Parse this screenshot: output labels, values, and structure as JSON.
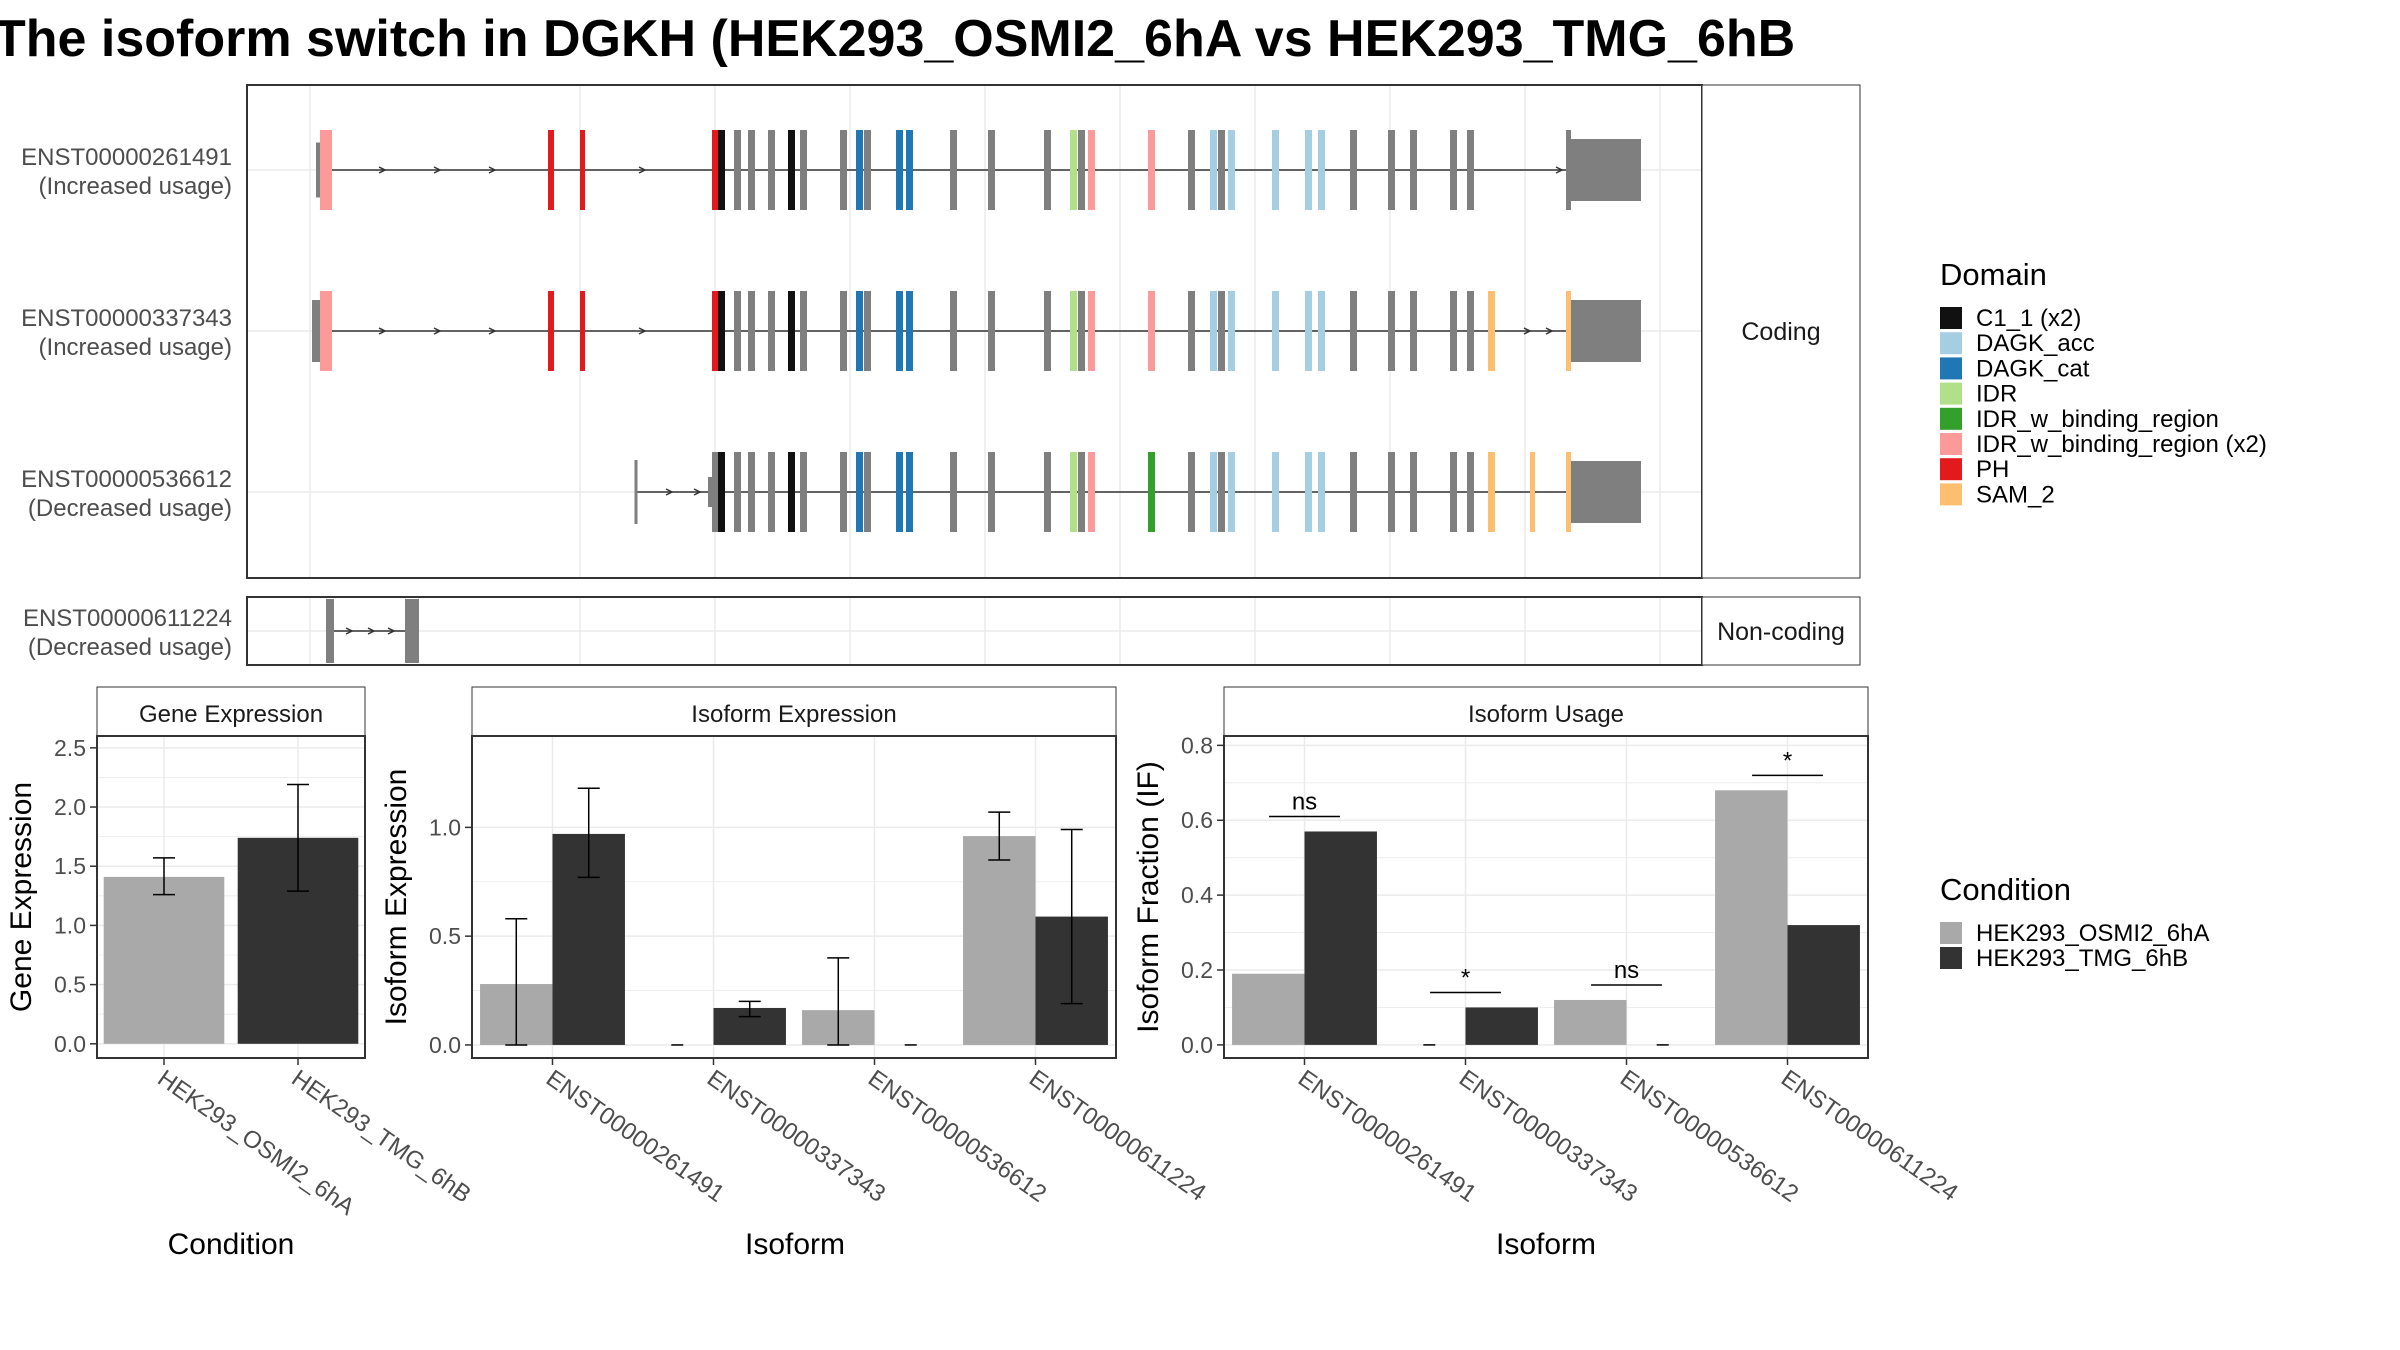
{
  "title": "The isoform switch in DGKH (HEK293_OSMI2_6hA vs HEK293_TMG_6hB",
  "structure": {
    "coding_label": "Coding",
    "noncoding_label": "Non-coding",
    "isoforms": [
      {
        "id": "ENST00000261491",
        "usage": "(Increased usage)",
        "group": "coding"
      },
      {
        "id": "ENST00000337343",
        "usage": "(Increased usage)",
        "group": "coding"
      },
      {
        "id": "ENST00000536612",
        "usage": "(Decreased usage)",
        "group": "coding"
      },
      {
        "id": "ENST00000611224",
        "usage": "(Decreased usage)",
        "group": "noncoding"
      }
    ]
  },
  "legend_domain": {
    "title": "Domain",
    "items": [
      {
        "label": "C1_1 (x2)",
        "color": "#111111"
      },
      {
        "label": "DAGK_acc",
        "color": "#a6cee3"
      },
      {
        "label": "DAGK_cat",
        "color": "#1f78b4"
      },
      {
        "label": "IDR",
        "color": "#b2df8a"
      },
      {
        "label": "IDR_w_binding_region",
        "color": "#33a02c"
      },
      {
        "label": "IDR_w_binding_region (x2)",
        "color": "#fb9a99"
      },
      {
        "label": "PH",
        "color": "#e31a1c"
      },
      {
        "label": "SAM_2",
        "color": "#fdbf6f"
      }
    ]
  },
  "legend_condition": {
    "title": "Condition",
    "items": [
      {
        "label": "HEK293_OSMI2_6hA",
        "color": "#a9a9a9"
      },
      {
        "label": "HEK293_TMG_6hB",
        "color": "#333333"
      }
    ]
  },
  "colors": {
    "exon": "#7f7f7f",
    "line": "#333333",
    "panel_border": "#333333",
    "strip_bg": "#ffffff",
    "grid": "#ebebeb"
  },
  "chart_data": [
    {
      "type": "bar",
      "title": "Gene Expression",
      "xlabel": "Condition",
      "ylabel": "Gene Expression",
      "categories": [
        "HEK293_OSMI2_6hA",
        "HEK293_TMG_6hB"
      ],
      "values": [
        1.41,
        1.74
      ],
      "err_low": [
        1.26,
        1.29
      ],
      "err_high": [
        1.57,
        2.19
      ],
      "ylim": [
        -0.12,
        2.6
      ],
      "yticks": [
        0.0,
        0.5,
        1.0,
        1.5,
        2.0,
        2.5
      ],
      "ytick_labels": [
        "0.0",
        "0.5",
        "1.0",
        "1.5",
        "2.0",
        "2.5"
      ]
    },
    {
      "type": "bar",
      "title": "Isoform Expression",
      "xlabel": "Isoform",
      "ylabel": "Isoform Expression",
      "categories": [
        "ENST00000261491",
        "ENST00000337343",
        "ENST00000536612",
        "ENST00000611224"
      ],
      "series": [
        {
          "name": "HEK293_OSMI2_6hA",
          "values": [
            0.28,
            0.0,
            0.16,
            0.96
          ],
          "err_low": [
            0.0,
            0.0,
            0.0,
            0.85
          ],
          "err_high": [
            0.58,
            0.0,
            0.4,
            1.07
          ]
        },
        {
          "name": "HEK293_TMG_6hB",
          "values": [
            0.97,
            0.17,
            0.0,
            0.59
          ],
          "err_low": [
            0.77,
            0.13,
            0.0,
            0.19
          ],
          "err_high": [
            1.18,
            0.2,
            0.0,
            0.99
          ]
        }
      ],
      "ylim": [
        -0.06,
        1.42
      ],
      "yticks": [
        0.0,
        0.5,
        1.0
      ],
      "ytick_labels": [
        "0.0",
        "0.5",
        "1.0"
      ]
    },
    {
      "type": "bar",
      "title": "Isoform Usage",
      "xlabel": "Isoform",
      "ylabel": "Isoform Fraction (IF)",
      "categories": [
        "ENST00000261491",
        "ENST00000337343",
        "ENST00000536612",
        "ENST00000611224"
      ],
      "series": [
        {
          "name": "HEK293_OSMI2_6hA",
          "values": [
            0.19,
            0.0,
            0.12,
            0.68
          ]
        },
        {
          "name": "HEK293_TMG_6hB",
          "values": [
            0.57,
            0.1,
            0.0,
            0.32
          ]
        }
      ],
      "significance": [
        {
          "label": "ns",
          "y": 0.61
        },
        {
          "label": "*",
          "y": 0.14
        },
        {
          "label": "ns",
          "y": 0.16
        },
        {
          "label": "*",
          "y": 0.72
        }
      ],
      "ylim": [
        -0.035,
        0.825
      ],
      "yticks": [
        0.0,
        0.2,
        0.4,
        0.6,
        0.8
      ],
      "ytick_labels": [
        "0.0",
        "0.2",
        "0.4",
        "0.6",
        "0.8"
      ]
    }
  ]
}
